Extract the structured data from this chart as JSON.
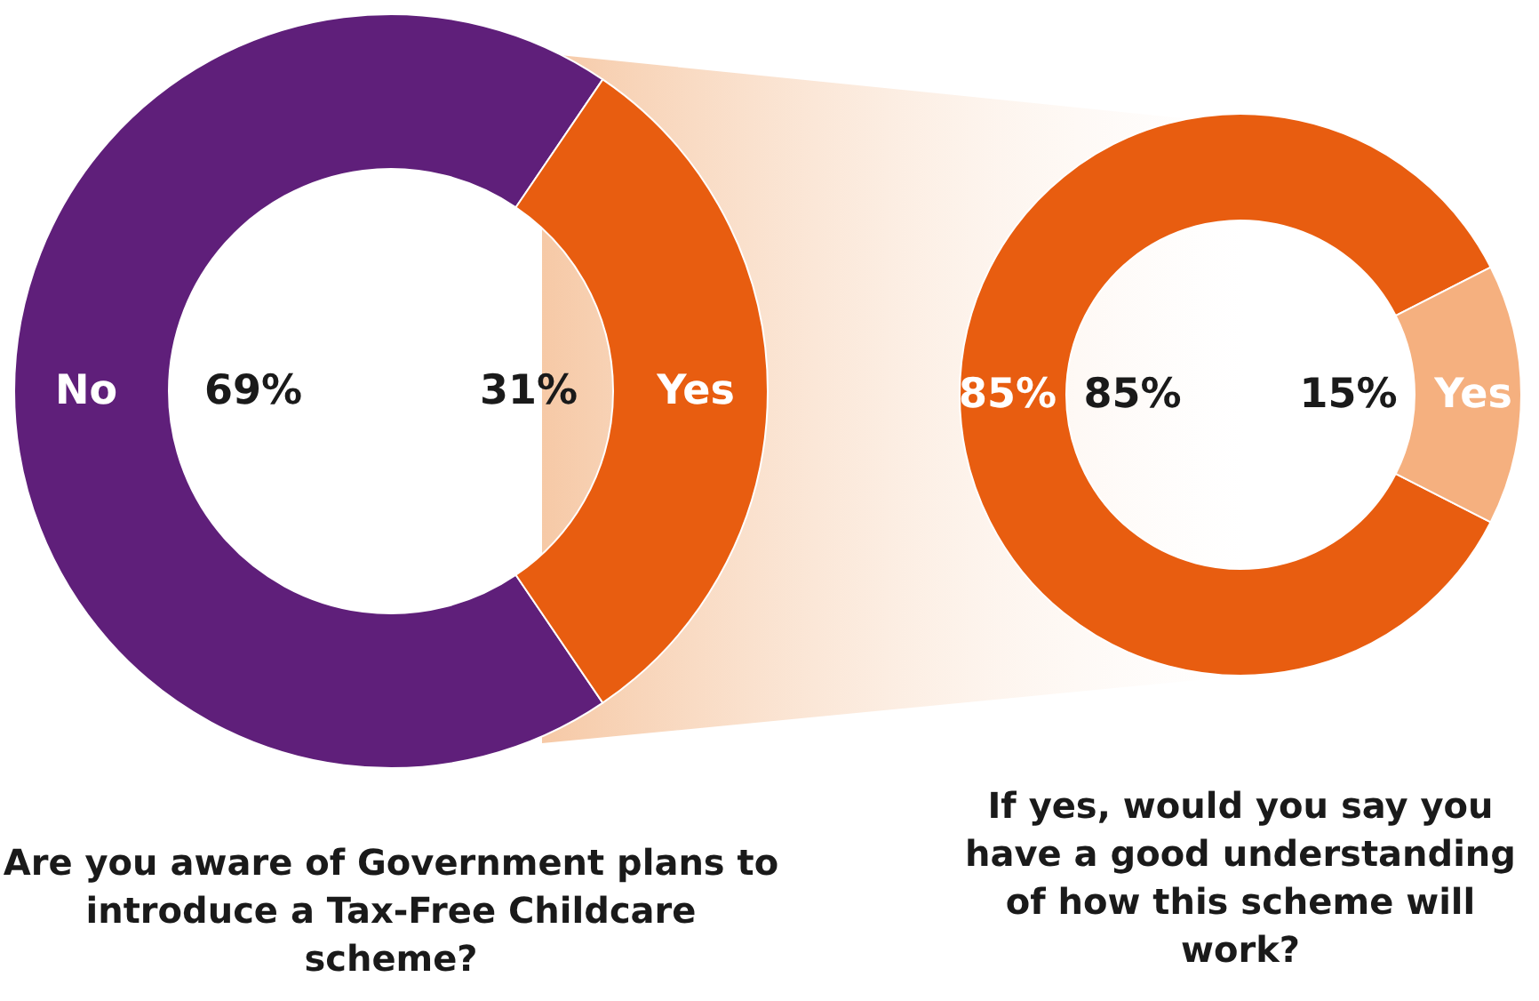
{
  "chart_data": [
    {
      "type": "donut",
      "title": "Are you aware of Government plans to introduce a Tax-Free Childcare scheme?",
      "categories": [
        "No",
        "Yes"
      ],
      "values": [
        69,
        31
      ],
      "colors": [
        "#5f1f7a",
        "#e85d10"
      ],
      "value_labels": [
        "69%",
        "31%"
      ]
    },
    {
      "type": "donut",
      "title": "If yes, would you say you have a good understanding of how this scheme will work?",
      "categories": [
        "85%",
        "Yes"
      ],
      "values": [
        85,
        15
      ],
      "colors": [
        "#e85d10",
        "#f5b07f"
      ],
      "value_labels": [
        "85%",
        "15%"
      ]
    }
  ]
}
